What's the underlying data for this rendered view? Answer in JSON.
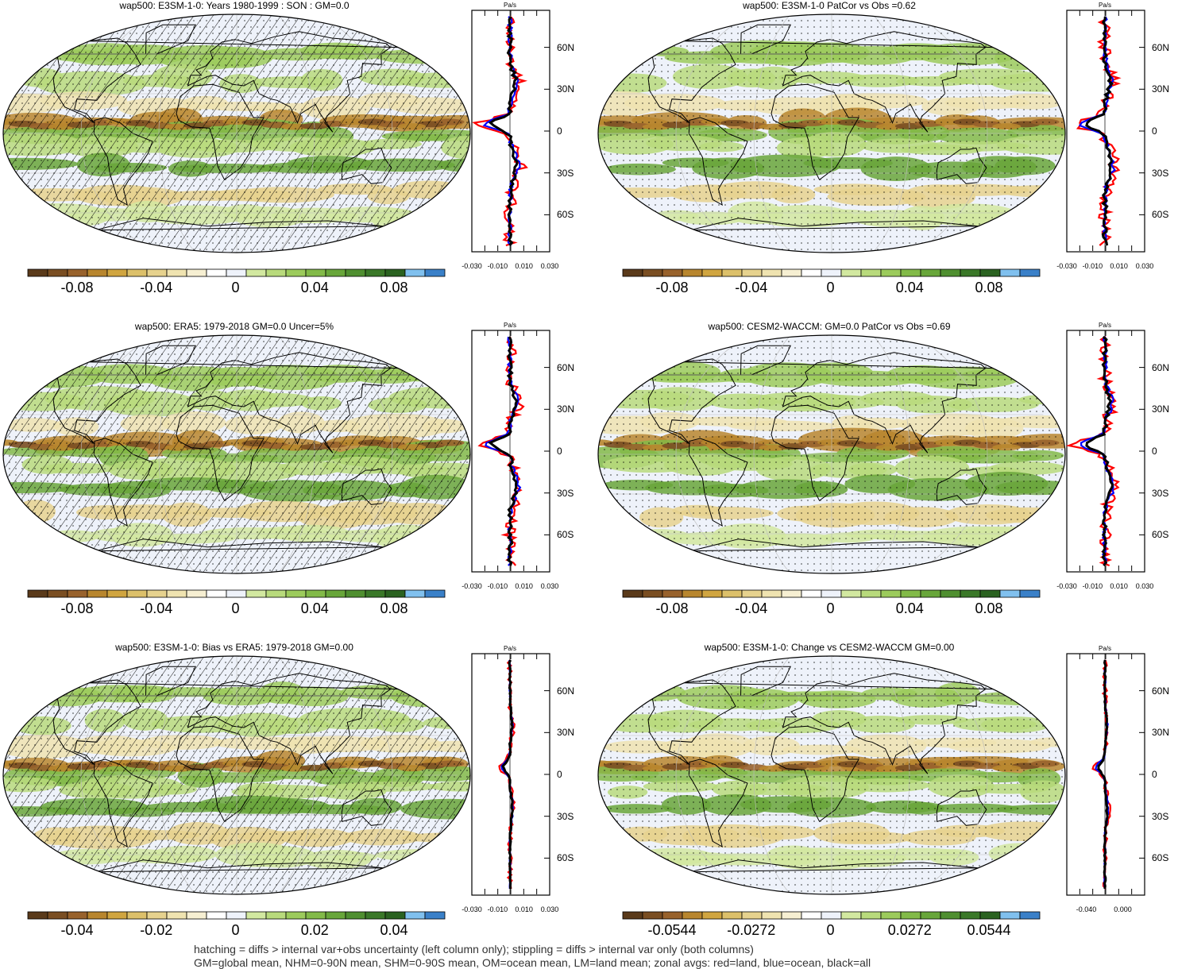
{
  "panels": [
    {
      "id": "p1",
      "title": "wap500: E3SM-1-0: Years 1980-1999 : SON : GM=0.0",
      "hatched": true,
      "colorbar": [
        "-0.08",
        "-0.04",
        "0",
        "0.04",
        "0.08"
      ],
      "prof_x": [
        "-0.030",
        "-0.010",
        "0.010",
        "0.030"
      ]
    },
    {
      "id": "p2",
      "title": "wap500: E3SM-1-0 PatCor vs Obs =0.62",
      "hatched": false,
      "colorbar": [
        "-0.08",
        "-0.04",
        "0",
        "0.04",
        "0.08"
      ],
      "prof_x": [
        "-0.030",
        "-0.010",
        "0.010",
        "0.030"
      ]
    },
    {
      "id": "p3",
      "title": "wap500: ERA5: 1979-2018 GM=0.0 Uncer=5%",
      "hatched": true,
      "colorbar": [
        "-0.08",
        "-0.04",
        "0",
        "0.04",
        "0.08"
      ],
      "prof_x": [
        "-0.030",
        "-0.010",
        "0.010",
        "0.030"
      ]
    },
    {
      "id": "p4",
      "title": "wap500: CESM2-WACCM: GM=0.0 PatCor vs Obs =0.69",
      "hatched": false,
      "colorbar": [
        "-0.08",
        "-0.04",
        "0",
        "0.04",
        "0.08"
      ],
      "prof_x": [
        "-0.030",
        "-0.010",
        "0.010",
        "0.030"
      ]
    },
    {
      "id": "p5",
      "title": "wap500: E3SM-1-0: Bias vs ERA5: 1979-2018  GM=0.00",
      "hatched": true,
      "colorbar": [
        "-0.04",
        "-0.02",
        "0",
        "0.02",
        "0.04"
      ],
      "prof_x": [
        "-0.030",
        "-0.010",
        "0.010",
        "0.030"
      ]
    },
    {
      "id": "p6",
      "title": "wap500: E3SM-1-0: Change vs CESM2-WACCM GM=0.00",
      "hatched": false,
      "colorbar": [
        "-0.0544",
        "-0.0272",
        "0",
        "0.0272",
        "0.0544"
      ],
      "prof_x": [
        "-0.040",
        "0.000"
      ]
    }
  ],
  "profile_unit": "Pa/s",
  "profile_lat_labels": [
    "60N",
    "30N",
    "0",
    "30S",
    "60S"
  ],
  "colors": {
    "scale": [
      "#5a3a1a",
      "#7a4e22",
      "#98622c",
      "#b8862e",
      "#d0a540",
      "#dcc06a",
      "#e6d28e",
      "#efe3b0",
      "#f6efd2",
      "#ffffff",
      "#eef2fa",
      "#d2e8a0",
      "#b8da7c",
      "#9ccb5c",
      "#82ba48",
      "#68a63a",
      "#4f8f30",
      "#3a7828",
      "#2a6220",
      "#80c0ee",
      "#3a80c8"
    ],
    "land_line": "#000000",
    "red": "#ff0000",
    "blue": "#0000ff",
    "black": "#000000"
  },
  "footer": {
    "line1": "hatching = diffs > internal var+obs uncertainty (left column only); stippling = diffs > internal var only (both columns)",
    "line2": "GM=global mean, NHM=0-90N mean, SHM=0-90S mean, OM=ocean mean, LM=land mean; zonal avgs: red=land, blue=ocean, black=all"
  }
}
